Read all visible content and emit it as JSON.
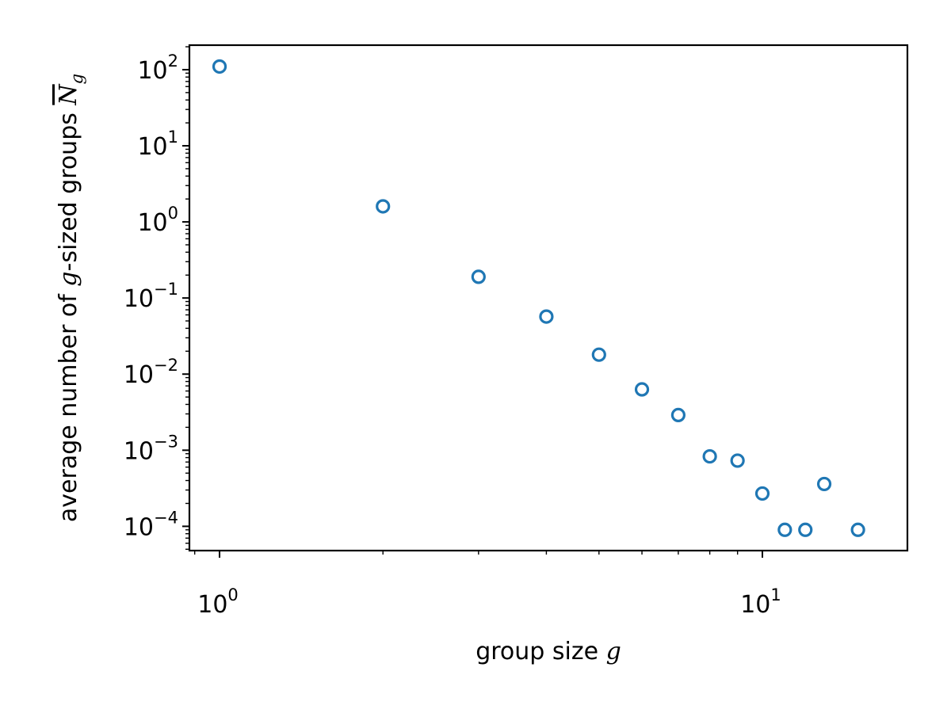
{
  "chart_data": {
    "type": "scatter",
    "title": "",
    "xlabel": "group size g",
    "xlabel_parts": {
      "text": "group size ",
      "math": "g"
    },
    "ylabel": "average number of g-sized groups N̄_g",
    "ylabel_parts": {
      "pre": "average number of ",
      "math": "g",
      "post": "-sized groups ",
      "symbol": "N",
      "subscript": "g"
    },
    "x_scale": "log",
    "y_scale": "log",
    "xlim": [
      0.88,
      18.5
    ],
    "ylim": [
      4.8e-05,
      210
    ],
    "x_ticks": [
      {
        "value": 1,
        "base": "10",
        "exp": "0"
      },
      {
        "value": 10,
        "base": "10",
        "exp": "1"
      }
    ],
    "y_ticks": [
      {
        "value": 100,
        "base": "10",
        "exp": "2"
      },
      {
        "value": 10,
        "base": "10",
        "exp": "1"
      },
      {
        "value": 1,
        "base": "10",
        "exp": "0"
      },
      {
        "value": 0.1,
        "base": "10",
        "exp": "−1"
      },
      {
        "value": 0.01,
        "base": "10",
        "exp": "−2"
      },
      {
        "value": 0.001,
        "base": "10",
        "exp": "−3"
      },
      {
        "value": 0.0001,
        "base": "10",
        "exp": "−4"
      }
    ],
    "grid": false,
    "marker": "open-circle",
    "series": [
      {
        "color": "#1f77b4",
        "x": [
          1,
          2,
          3,
          4,
          5,
          6,
          7,
          8,
          9,
          10,
          11,
          12,
          13,
          15
        ],
        "y": [
          110,
          1.6,
          0.19,
          0.057,
          0.018,
          0.0063,
          0.0029,
          0.00083,
          0.00073,
          0.00027,
          9e-05,
          9e-05,
          0.00036,
          9e-05
        ]
      }
    ]
  }
}
